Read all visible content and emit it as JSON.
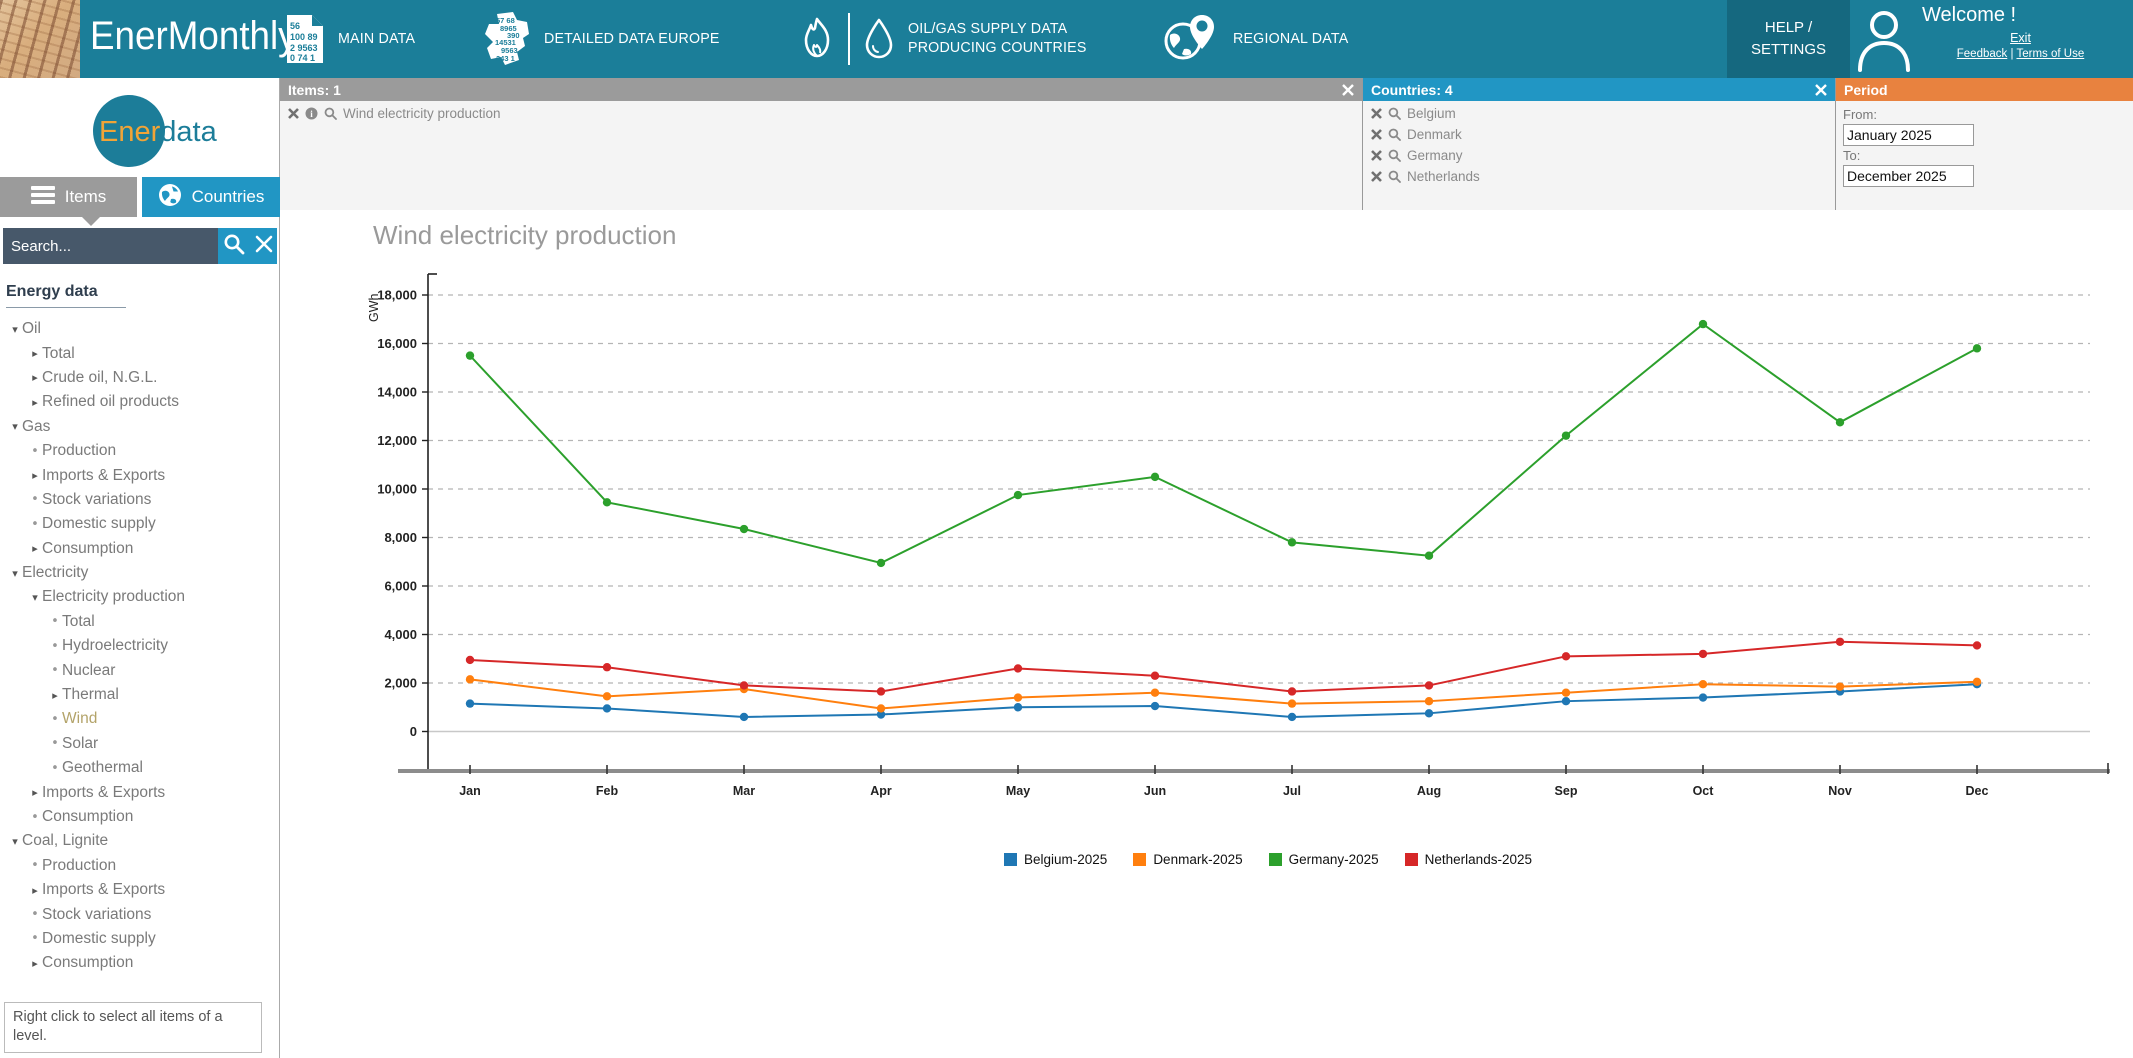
{
  "app_title": "EnerMonthly",
  "header": {
    "nav": [
      {
        "label": "MAIN DATA",
        "icon": "data-sheet-icon",
        "icon_digits": [
          "56",
          "100 89",
          "2 9563",
          "0 74 1"
        ]
      },
      {
        "label": "DETAILED DATA EUROPE",
        "icon": "europe-map-icon",
        "icon_digits": [
          "57 68",
          "8965",
          "390",
          "14531",
          "9563",
          "243 1"
        ]
      },
      {
        "label_line1": "OIL/GAS SUPPLY DATA",
        "label_line2": "PRODUCING COUNTRIES",
        "icon": "flame-and-drop-icon"
      },
      {
        "label": "REGIONAL DATA",
        "icon": "globe-pin-icon"
      }
    ],
    "help_line1": "HELP /",
    "help_line2": "SETTINGS",
    "welcome": "Welcome !",
    "exit": "Exit",
    "feedback": "Feedback",
    "links_separator": "|",
    "terms": "Terms of Use"
  },
  "sidebar": {
    "logo_left": "Ener",
    "logo_right": "data",
    "tabs": [
      {
        "label": "Items",
        "icon": "menu-icon",
        "active": true
      },
      {
        "label": "Countries",
        "icon": "globe-icon",
        "active": false
      }
    ],
    "search_placeholder": "Search...",
    "tree_title": "Energy data",
    "tree": [
      {
        "label": "Oil",
        "level": 0,
        "marker": "expanded"
      },
      {
        "label": "Total",
        "level": 1,
        "marker": "collapsed"
      },
      {
        "label": "Crude oil, N.G.L.",
        "level": 1,
        "marker": "collapsed"
      },
      {
        "label": "Refined oil products",
        "level": 1,
        "marker": "collapsed"
      },
      {
        "label": "Gas",
        "level": 0,
        "marker": "expanded"
      },
      {
        "label": "Production",
        "level": 1,
        "marker": "leaf"
      },
      {
        "label": "Imports & Exports",
        "level": 1,
        "marker": "collapsed"
      },
      {
        "label": "Stock variations",
        "level": 1,
        "marker": "leaf"
      },
      {
        "label": "Domestic supply",
        "level": 1,
        "marker": "leaf"
      },
      {
        "label": "Consumption",
        "level": 1,
        "marker": "collapsed"
      },
      {
        "label": "Electricity",
        "level": 0,
        "marker": "expanded"
      },
      {
        "label": "Electricity production",
        "level": 1,
        "marker": "expanded"
      },
      {
        "label": "Total",
        "level": 2,
        "marker": "leaf"
      },
      {
        "label": "Hydroelectricity",
        "level": 2,
        "marker": "leaf"
      },
      {
        "label": "Nuclear",
        "level": 2,
        "marker": "leaf"
      },
      {
        "label": "Thermal",
        "level": 2,
        "marker": "collapsed"
      },
      {
        "label": "Wind",
        "level": 2,
        "marker": "leaf",
        "selected": true
      },
      {
        "label": "Solar",
        "level": 2,
        "marker": "leaf"
      },
      {
        "label": "Geothermal",
        "level": 2,
        "marker": "leaf"
      },
      {
        "label": "Imports & Exports",
        "level": 1,
        "marker": "collapsed"
      },
      {
        "label": "Consumption",
        "level": 1,
        "marker": "leaf"
      },
      {
        "label": "Coal, Lignite",
        "level": 0,
        "marker": "expanded"
      },
      {
        "label": "Production",
        "level": 1,
        "marker": "leaf"
      },
      {
        "label": "Imports & Exports",
        "level": 1,
        "marker": "collapsed"
      },
      {
        "label": "Stock variations",
        "level": 1,
        "marker": "leaf"
      },
      {
        "label": "Domestic supply",
        "level": 1,
        "marker": "leaf"
      },
      {
        "label": "Consumption",
        "level": 1,
        "marker": "collapsed"
      }
    ],
    "tip": "Right click to select all items of a level."
  },
  "panels": {
    "items": {
      "title": "Items: 1",
      "rows": [
        {
          "label": "Wind electricity production"
        }
      ]
    },
    "countries": {
      "title": "Countries: 4",
      "rows": [
        {
          "label": "Belgium"
        },
        {
          "label": "Denmark"
        },
        {
          "label": "Germany"
        },
        {
          "label": "Netherlands"
        }
      ]
    },
    "period": {
      "title": "Period",
      "from_label": "From:",
      "from_value": "January 2025",
      "to_label": "To:",
      "to_value": "December 2025"
    }
  },
  "toolbar": {
    "icons": [
      "new-document-icon",
      "open-folder-icon",
      "save-icon",
      "excel-export-icon",
      "settings-gear-icon",
      "expand-icon",
      "monthly-m-icon",
      "table-view-icon",
      "bar-chart-view-icon"
    ]
  },
  "colors": {
    "header_teal": "#1b7e99",
    "panel_gray": "#9b9b9b",
    "panel_blue": "#2196c4",
    "panel_orange": "#e8823f",
    "selected_tree_item": "#b3a369",
    "toolbar_blue": "#2aa0c8",
    "toolbar_green": "#199a4f",
    "toolbar_gray": "#a5a5a5",
    "toolbar_teal": "#1a7b9d"
  },
  "chart_data": {
    "type": "line",
    "title": "Wind electricity production",
    "ylabel": "GWh",
    "categories": [
      "Jan",
      "Feb",
      "Mar",
      "Apr",
      "May",
      "Jun",
      "Jul",
      "Aug",
      "Sep",
      "Oct",
      "Nov",
      "Dec"
    ],
    "series": [
      {
        "name": "Belgium-2025",
        "color": "#1f77b4",
        "values": [
          1150,
          950,
          600,
          700,
          1000,
          1050,
          600,
          750,
          1250,
          1400,
          1650,
          1950
        ]
      },
      {
        "name": "Denmark-2025",
        "color": "#ff7f0e",
        "values": [
          2150,
          1450,
          1750,
          950,
          1400,
          1600,
          1150,
          1250,
          1600,
          1950,
          1850,
          2050
        ]
      },
      {
        "name": "Germany-2025",
        "color": "#2ca02c",
        "values": [
          15500,
          9450,
          8350,
          6950,
          9750,
          10500,
          7800,
          7250,
          12200,
          16800,
          12750,
          15800
        ]
      },
      {
        "name": "Netherlands-2025",
        "color": "#d62728",
        "values": [
          2950,
          2650,
          1900,
          1650,
          2600,
          2300,
          1650,
          1900,
          3100,
          3200,
          3700,
          3550
        ]
      }
    ],
    "ylim": [
      0,
      18000
    ],
    "ytick_step": 2000,
    "grid": true,
    "legend_position": "bottom"
  }
}
